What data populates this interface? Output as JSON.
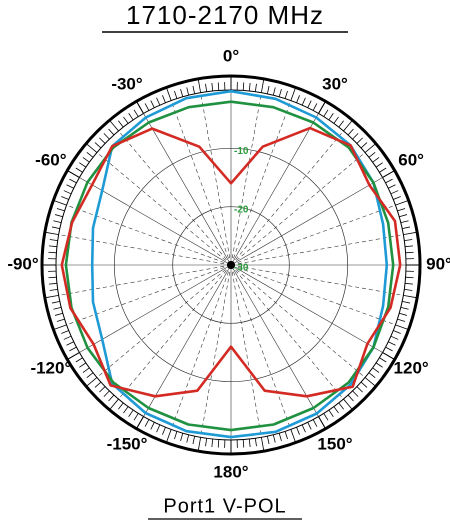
{
  "chart_data": {
    "type": "polar",
    "title": "1710-2170 MHz",
    "subtitle": "Port1 V-POL",
    "theta": [
      0,
      15,
      30,
      45,
      60,
      75,
      90,
      105,
      120,
      135,
      150,
      165,
      180,
      195,
      210,
      225,
      240,
      255,
      270,
      285,
      300,
      315,
      330,
      345
    ],
    "rlim": [
      -30,
      0
    ],
    "rticks": [
      -10,
      -20,
      -30
    ],
    "thetaticks": [
      {
        "value": 0,
        "label": "0°"
      },
      {
        "value": 30,
        "label": "30°"
      },
      {
        "value": 60,
        "label": "60°"
      },
      {
        "value": 90,
        "label": "90°"
      },
      {
        "value": 120,
        "label": "120°"
      },
      {
        "value": 150,
        "label": "150°"
      },
      {
        "value": 180,
        "label": "180°"
      },
      {
        "value": -150,
        "label": "-150°"
      },
      {
        "value": -120,
        "label": "-120°"
      },
      {
        "value": -90,
        "label": "-90°"
      },
      {
        "value": -60,
        "label": "-60°"
      },
      {
        "value": -30,
        "label": "-30°"
      }
    ],
    "series": [
      {
        "color": "#1e9ad6",
        "values": [
          -0.2,
          -0.5,
          -0.8,
          -1.0,
          -1.8,
          -3.0,
          -3.3,
          -3.0,
          -1.8,
          -1.0,
          -0.6,
          -0.4,
          -0.5,
          -0.5,
          -0.7,
          -1.2,
          -4.5,
          -5.5,
          -6.2,
          -5.5,
          -4.5,
          -1.2,
          -0.8,
          -0.4
        ]
      },
      {
        "color": "#1f9140",
        "values": [
          -2.0,
          -2.0,
          -1.8,
          -1.5,
          -1.8,
          -2.1,
          -2.2,
          -2.1,
          -1.8,
          -1.5,
          -1.7,
          -1.7,
          -1.7,
          -1.7,
          -1.7,
          -1.5,
          -1.6,
          -1.7,
          -1.7,
          -1.7,
          -1.6,
          -1.5,
          -1.8,
          -2.0
        ]
      },
      {
        "color": "#d42a24",
        "values": [
          -16,
          -9,
          -2.9,
          -1.0,
          -2.6,
          -0.9,
          -1.0,
          -1.7,
          -3.0,
          -0.5,
          -4.0,
          -7.7,
          -16,
          -7.7,
          -4.0,
          -0.8,
          -2.8,
          -1.5,
          -1.0,
          -1.8,
          -2.5,
          -1.2,
          -3.0,
          -9
        ]
      }
    ]
  }
}
